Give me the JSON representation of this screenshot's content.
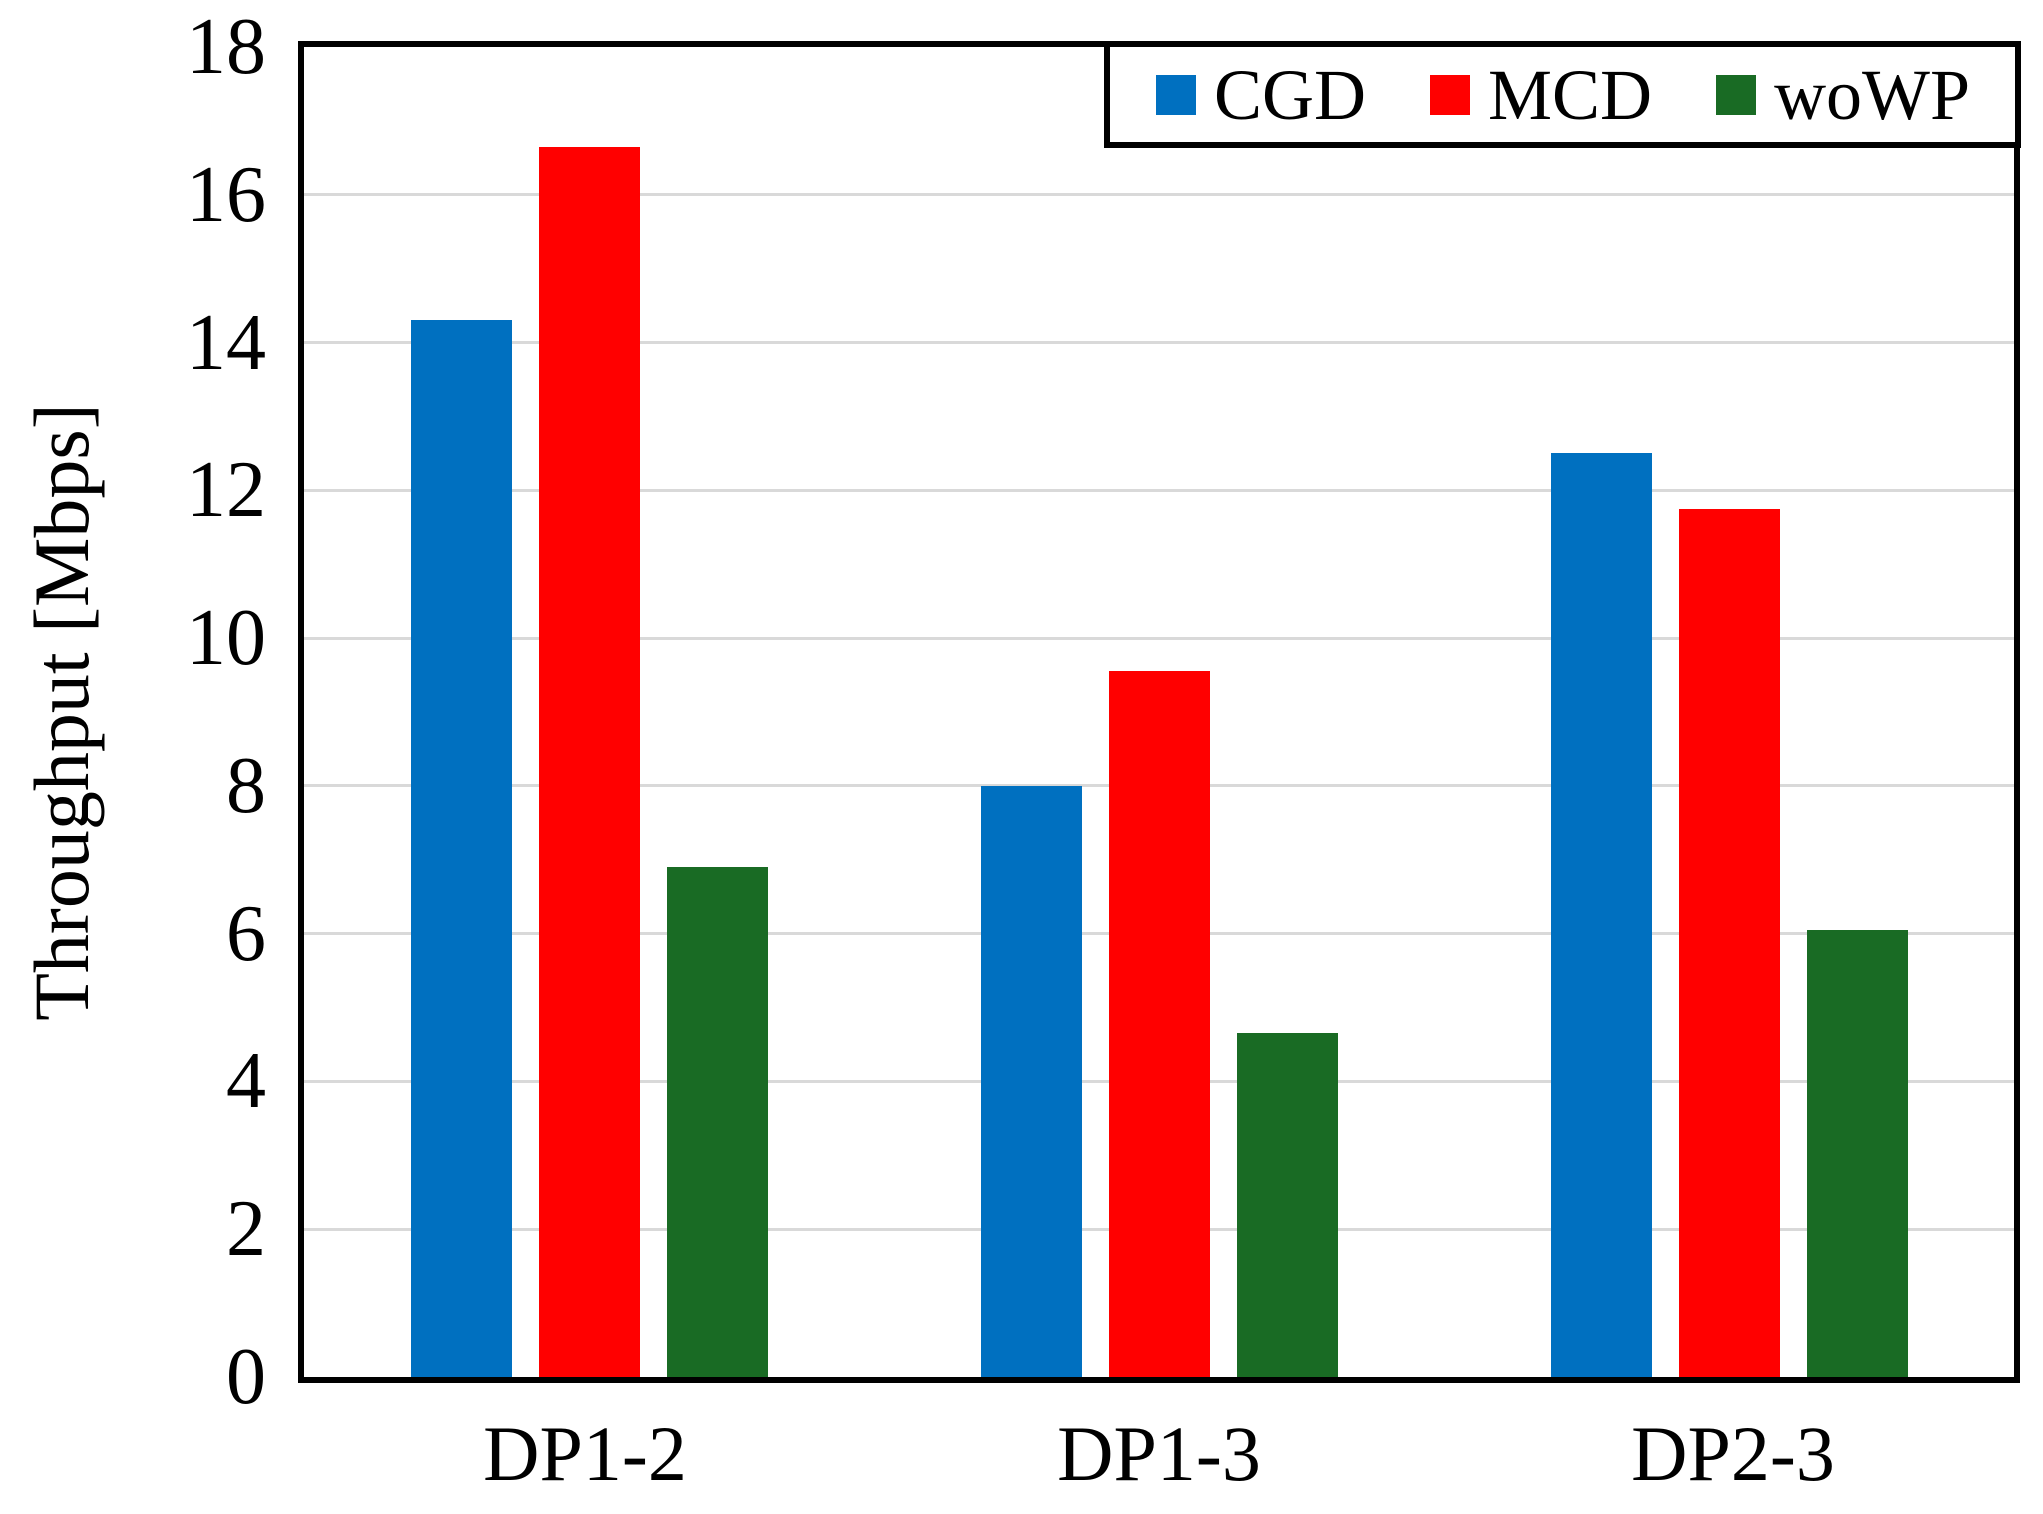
{
  "chart_data": {
    "type": "bar",
    "title": "",
    "xlabel": "",
    "ylabel": "Throughput [Mbps]",
    "categories": [
      "DP1-2",
      "DP1-3",
      "DP2-3"
    ],
    "series": [
      {
        "name": "CGD",
        "color": "#0070C0",
        "values": [
          14.3,
          8.0,
          12.5
        ]
      },
      {
        "name": "MCD",
        "color": "#FF0000",
        "values": [
          16.65,
          9.55,
          11.75
        ]
      },
      {
        "name": "woWP",
        "color": "#196B24",
        "values": [
          6.9,
          4.65,
          6.05
        ]
      }
    ],
    "ylim": [
      0,
      18
    ],
    "yticks": [
      0,
      2,
      4,
      6,
      8,
      10,
      12,
      14,
      16,
      18
    ],
    "grid": true,
    "legend_position": "top-right-inside",
    "colors": {
      "axis": "#000000",
      "gridline": "#D9D9D9",
      "background": "#FFFFFF"
    }
  }
}
